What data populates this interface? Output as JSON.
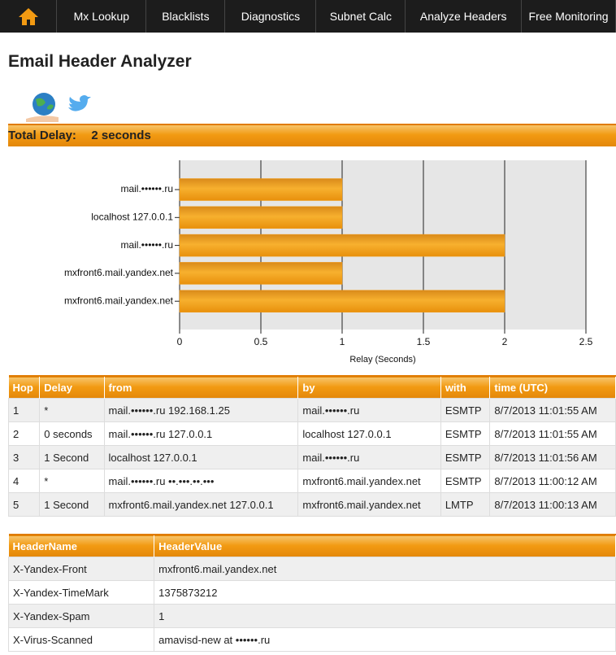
{
  "nav": {
    "items": [
      "Mx Lookup",
      "Blacklists",
      "Diagnostics",
      "Subnet Calc",
      "Analyze Headers",
      "Free Monitoring"
    ]
  },
  "header": {
    "title": "Email Header Analyzer"
  },
  "total_delay": {
    "label": "Total Delay:",
    "value": "2 seconds"
  },
  "chart_data": {
    "type": "bar",
    "orientation": "horizontal",
    "categories": [
      "mail.••••••.ru",
      "localhost 127.0.0.1",
      "mail.••••••.ru",
      "mxfront6.mail.yandex.net",
      "mxfront6.mail.yandex.net"
    ],
    "values": [
      1,
      1,
      2,
      1,
      2
    ],
    "color": "#f29a12",
    "xlabel": "Relay (Seconds)",
    "xlim": [
      0,
      2.5
    ],
    "xticks": [
      0,
      0.5,
      1,
      1.5,
      2,
      2.5
    ],
    "grid": true
  },
  "hops_table": {
    "header": [
      "Hop",
      "Delay",
      "from",
      "by",
      "with",
      "time (UTC)"
    ],
    "rows": [
      [
        "1",
        "*",
        "mail.••••••.ru 192.168.1.25",
        "mail.••••••.ru",
        "ESMTP",
        "8/7/2013 11:01:55 AM"
      ],
      [
        "2",
        "0 seconds",
        "mail.••••••.ru 127.0.0.1",
        "localhost 127.0.0.1",
        "ESMTP",
        "8/7/2013 11:01:55 AM"
      ],
      [
        "3",
        "1 Second",
        "localhost 127.0.0.1",
        "mail.••••••.ru",
        "ESMTP",
        "8/7/2013 11:01:56 AM"
      ],
      [
        "4",
        "*",
        "mail.••••••.ru ••.•••.••.•••",
        "mxfront6.mail.yandex.net",
        "ESMTP",
        "8/7/2013 11:00:12 AM"
      ],
      [
        "5",
        "1 Second",
        "mxfront6.mail.yandex.net 127.0.0.1",
        "mxfront6.mail.yandex.net",
        "LMTP",
        "8/7/2013 11:00:13 AM"
      ]
    ]
  },
  "headers_table": {
    "header": [
      "HeaderName",
      "HeaderValue"
    ],
    "rows": [
      [
        "X-Yandex-Front",
        "mxfront6.mail.yandex.net"
      ],
      [
        "X-Yandex-TimeMark",
        "1375873212"
      ],
      [
        "X-Yandex-Spam",
        "1"
      ],
      [
        "X-Virus-Scanned",
        "amavisd-new at ••••••.ru"
      ]
    ]
  }
}
